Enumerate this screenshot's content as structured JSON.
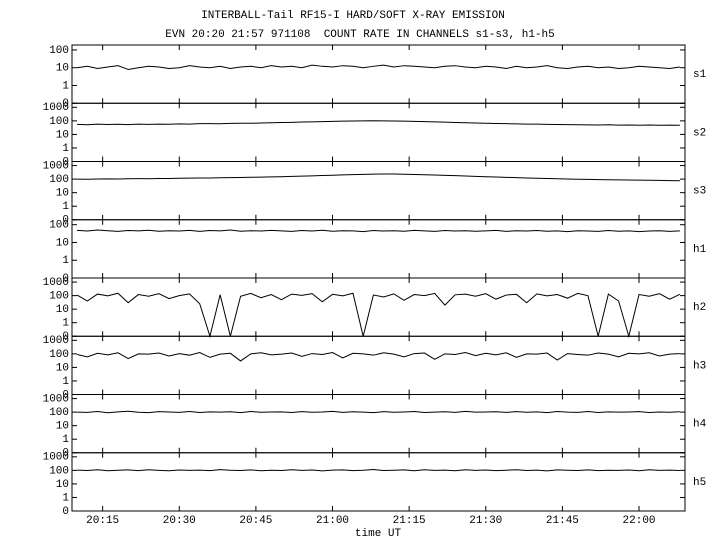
{
  "chart_data": {
    "type": "line",
    "title": "INTERBALL-Tail RF15-I HARD/SOFT X-RAY EMISSION",
    "subtitle": "EVN 20:20 21:57 971108  COUNT RATE IN CHANNELS s1-s3, h1-h5",
    "x_label": "time UT",
    "yscale": "log",
    "color": "#000000",
    "xlim": [
      1209,
      1329
    ],
    "xticks": [
      {
        "value": 1215,
        "label": "20:15"
      },
      {
        "value": 1230,
        "label": "20:30"
      },
      {
        "value": 1245,
        "label": "20:45"
      },
      {
        "value": 1260,
        "label": "21:00"
      },
      {
        "value": 1275,
        "label": "21:15"
      },
      {
        "value": 1290,
        "label": "21:30"
      },
      {
        "value": 1305,
        "label": "21:45"
      },
      {
        "value": 1320,
        "label": "22:00"
      }
    ],
    "x": [
      1210,
      1212,
      1214,
      1216,
      1218,
      1220,
      1222,
      1224,
      1226,
      1228,
      1230,
      1232,
      1234,
      1236,
      1238,
      1240,
      1242,
      1244,
      1246,
      1248,
      1250,
      1252,
      1254,
      1256,
      1258,
      1260,
      1262,
      1264,
      1266,
      1268,
      1270,
      1272,
      1274,
      1276,
      1278,
      1280,
      1282,
      1284,
      1286,
      1288,
      1290,
      1292,
      1294,
      1296,
      1298,
      1300,
      1302,
      1304,
      1306,
      1308,
      1310,
      1312,
      1314,
      1316,
      1318,
      1320,
      1322,
      1324,
      1326,
      1328
    ],
    "panels": [
      {
        "name": "s1",
        "ylim": [
          0,
          190
        ],
        "yticks": [
          100,
          10,
          1,
          0
        ],
        "values": [
          10,
          12,
          9,
          11,
          13,
          8,
          10,
          12,
          11,
          9,
          10,
          13,
          11,
          10,
          12,
          9,
          11,
          12,
          10,
          13,
          11,
          12,
          10,
          14,
          12,
          11,
          13,
          12,
          10,
          12,
          14,
          11,
          13,
          12,
          11,
          10,
          12,
          13,
          11,
          10,
          12,
          11,
          9,
          12,
          10,
          11,
          13,
          10,
          9,
          11,
          12,
          10,
          11,
          9,
          10,
          12,
          11,
          10,
          9,
          11
        ]
      },
      {
        "name": "s2",
        "ylim": [
          0,
          2000
        ],
        "yticks": [
          1000,
          100,
          10,
          1,
          0
        ],
        "values": [
          55,
          52,
          58,
          54,
          56,
          53,
          57,
          55,
          58,
          56,
          60,
          58,
          62,
          63,
          61,
          65,
          67,
          66,
          70,
          72,
          75,
          78,
          82,
          85,
          88,
          92,
          95,
          98,
          100,
          102,
          100,
          98,
          95,
          92,
          88,
          84,
          80,
          76,
          72,
          70,
          67,
          64,
          62,
          60,
          58,
          57,
          55,
          54,
          53,
          52,
          51,
          50,
          52,
          49,
          50,
          48,
          50,
          47,
          49,
          48
        ]
      },
      {
        "name": "s3",
        "ylim": [
          0,
          2000
        ],
        "yticks": [
          1000,
          100,
          10,
          1,
          0
        ],
        "values": [
          100,
          98,
          102,
          105,
          103,
          106,
          108,
          107,
          110,
          112,
          115,
          118,
          120,
          122,
          125,
          128,
          132,
          136,
          140,
          145,
          150,
          158,
          165,
          175,
          185,
          195,
          205,
          215,
          225,
          235,
          240,
          238,
          230,
          220,
          210,
          200,
          190,
          180,
          170,
          160,
          150,
          142,
          135,
          128,
          122,
          116,
          110,
          106,
          102,
          98,
          95,
          92,
          90,
          88,
          86,
          84,
          82,
          80,
          78,
          76
        ]
      },
      {
        "name": "h1",
        "ylim": [
          0,
          190
        ],
        "yticks": [
          100,
          10,
          1,
          0
        ],
        "values": [
          48,
          44,
          50,
          46,
          42,
          47,
          45,
          49,
          43,
          46,
          44,
          48,
          42,
          47,
          45,
          50,
          43,
          46,
          44,
          48,
          45,
          42,
          47,
          44,
          49,
          43,
          46,
          45,
          41,
          47,
          44,
          46,
          43,
          48,
          45,
          42,
          47,
          44,
          46,
          43,
          45,
          48,
          42,
          46,
          44,
          47,
          43,
          45,
          41,
          46,
          44,
          42,
          47,
          43,
          45,
          41,
          44,
          46,
          42,
          45
        ]
      },
      {
        "name": "h2",
        "ylim": [
          0,
          2000
        ],
        "yticks": [
          1000,
          100,
          10,
          1,
          0
        ],
        "values": [
          110,
          40,
          130,
          95,
          150,
          30,
          120,
          90,
          140,
          60,
          100,
          135,
          25,
          0,
          115,
          0,
          90,
          145,
          70,
          120,
          50,
          130,
          105,
          140,
          35,
          125,
          95,
          150,
          0,
          110,
          80,
          135,
          45,
          120,
          100,
          145,
          20,
          115,
          130,
          90,
          140,
          55,
          110,
          125,
          30,
          135,
          95,
          120,
          65,
          145,
          100,
          0,
          130,
          40,
          0,
          120,
          90,
          140,
          55,
          125
        ]
      },
      {
        "name": "h3",
        "ylim": [
          0,
          2000
        ],
        "yticks": [
          1000,
          100,
          10,
          1,
          0
        ],
        "values": [
          90,
          60,
          110,
          85,
          120,
          45,
          100,
          95,
          115,
          70,
          105,
          80,
          125,
          55,
          95,
          110,
          30,
          100,
          120,
          85,
          95,
          115,
          65,
          105,
          90,
          125,
          50,
          110,
          100,
          80,
          120,
          95,
          60,
          105,
          115,
          40,
          100,
          90,
          125,
          75,
          110,
          85,
          120,
          55,
          100,
          95,
          115,
          35,
          105,
          90,
          80,
          115,
          95,
          60,
          110,
          100,
          120,
          70,
          95,
          105
        ]
      },
      {
        "name": "h4",
        "ylim": [
          0,
          2000
        ],
        "yticks": [
          1000,
          100,
          10,
          1,
          0
        ],
        "values": [
          100,
          95,
          110,
          90,
          105,
          115,
          98,
          92,
          108,
          102,
          96,
          112,
          94,
          104,
          99,
          107,
          91,
          110,
          97,
          103,
          105,
          93,
          109,
          98,
          101,
          114,
          95,
          106,
          100,
          92,
          108,
          97,
          103,
          111,
          94,
          100,
          106,
          96,
          113,
          99,
          102,
          107,
          95,
          109,
          98,
          104,
          91,
          112,
          100,
          96,
          110,
          94,
          105,
          99,
          103,
          108,
          93,
          101,
          97,
          106
        ]
      },
      {
        "name": "h5",
        "ylim": [
          0,
          2000
        ],
        "yticks": [
          1000,
          100,
          10,
          1,
          0
        ],
        "values": [
          105,
          98,
          112,
          94,
          101,
          108,
          96,
          110,
          100,
          93,
          107,
          99,
          104,
          95,
          113,
          102,
          97,
          109,
          94,
          103,
          98,
          111,
          100,
          106,
          92,
          104,
          109,
          96,
          101,
          115,
          97,
          103,
          108,
          93,
          110,
          99,
          105,
          94,
          112,
          100,
          106,
          95,
          102,
          111,
          98,
          104,
          92,
          108,
          101,
          97,
          109,
          96,
          103,
          100,
          107,
          94,
          111,
          99,
          105,
          98
        ]
      }
    ]
  }
}
